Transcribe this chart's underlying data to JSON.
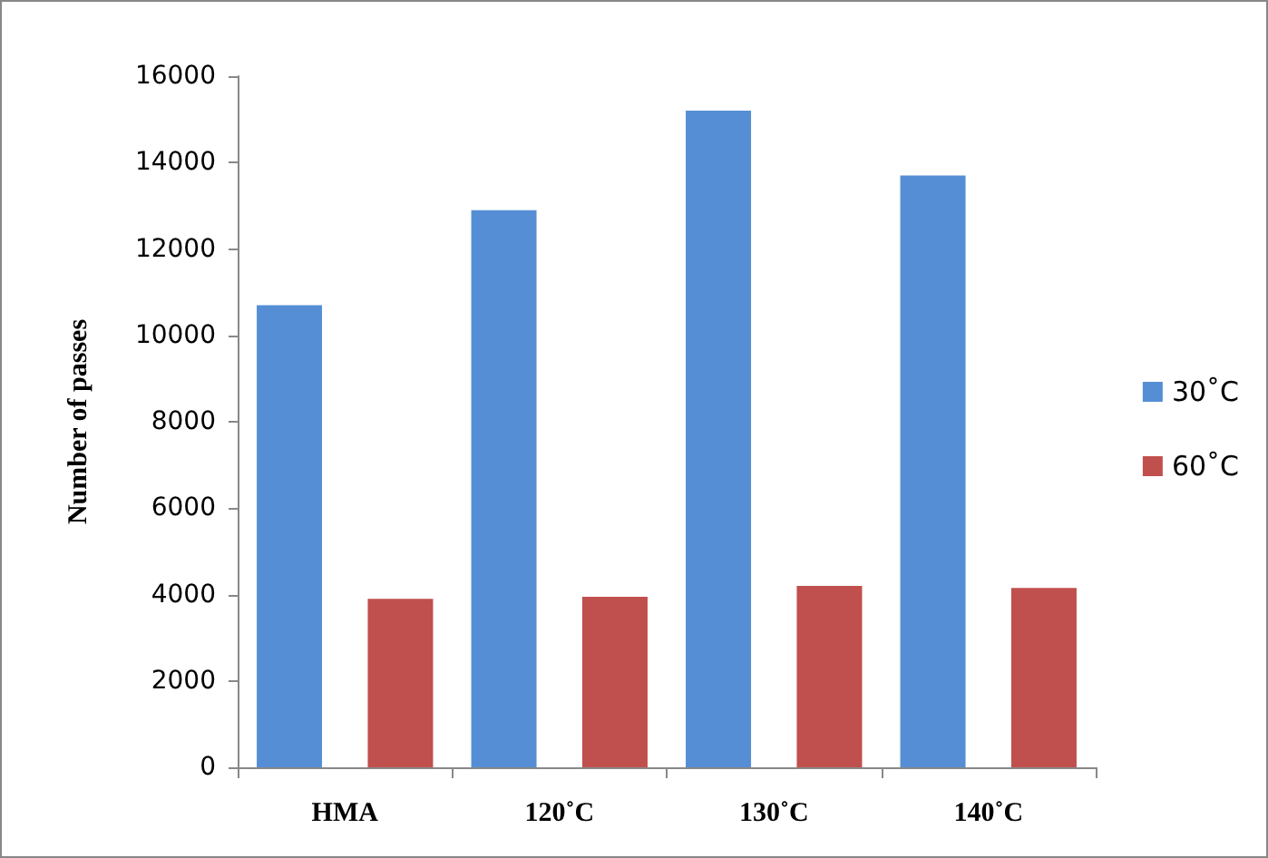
{
  "chart_data": {
    "type": "bar",
    "ylabel": "Number of passes",
    "categories": [
      "HMA",
      "120˚C",
      "130˚C",
      "140˚C"
    ],
    "series": [
      {
        "name": "30˚C",
        "color": "#558ed5",
        "values": [
          10700,
          12900,
          15200,
          13700
        ]
      },
      {
        "name": "60˚C",
        "color": "#c0504d",
        "values": [
          3900,
          3950,
          4200,
          4150
        ]
      }
    ],
    "ylim": [
      0,
      16000
    ],
    "yticks": [
      0,
      2000,
      4000,
      6000,
      8000,
      10000,
      12000,
      14000,
      16000
    ],
    "grid": false,
    "legend": "right"
  }
}
